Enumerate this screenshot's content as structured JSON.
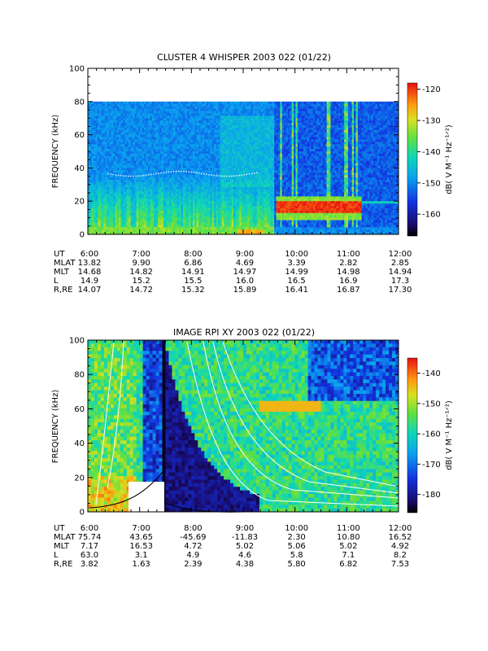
{
  "chart_data": [
    {
      "type": "heatmap",
      "title": "CLUSTER 4 WHISPER 2003 022 (01/22)",
      "ylabel": "FREQUENCY (kHz)",
      "ylim": [
        0,
        100
      ],
      "yticks": [
        "0",
        "20",
        "40",
        "60",
        "80",
        "100"
      ],
      "xlim": [
        "6:00",
        "12:00"
      ],
      "xticks": [
        "6:00",
        "7:00",
        "8:00",
        "9:00",
        "10:00",
        "11:00",
        "12:00"
      ],
      "data_top_khz": 80,
      "colorbar": {
        "label": "dB( V M⁻¹ Hz⁻¹ᐟ²)",
        "range": [
          -167,
          -118
        ],
        "ticks": [
          "-120",
          "-130",
          "-140",
          "-150",
          "-160"
        ]
      },
      "ephemeris": {
        "rows": [
          {
            "label": "UT",
            "values": [
              "6:00",
              "7:00",
              "8:00",
              "9:00",
              "10:00",
              "11:00",
              "12:00"
            ]
          },
          {
            "label": "MLAT",
            "values": [
              "13.82",
              "9.90",
              "6.86",
              "4.69",
              "3.39",
              "2.82",
              "2.85"
            ]
          },
          {
            "label": "MLT",
            "values": [
              "14.68",
              "14.82",
              "14.91",
              "14.97",
              "14.99",
              "14.98",
              "14.94"
            ]
          },
          {
            "label": "L",
            "values": [
              "14.9",
              "15.2",
              "15.5",
              "16.0",
              "16.5",
              "16.9",
              "17.3"
            ]
          },
          {
            "label": "R,RE",
            "values": [
              "14.07",
              "14.72",
              "15.32",
              "15.89",
              "16.41",
              "16.87",
              "17.30"
            ]
          }
        ]
      }
    },
    {
      "type": "heatmap",
      "title": "IMAGE RPI XY 2003 022 (01/22)",
      "ylabel": "FREQUENCY (kHz)",
      "ylim": [
        0,
        100
      ],
      "yticks": [
        "0",
        "20",
        "40",
        "60",
        "80",
        "100"
      ],
      "xlim": [
        "6:00",
        "12:00"
      ],
      "xticks": [
        "6:00",
        "7:00",
        "8:00",
        "9:00",
        "10:00",
        "11:00",
        "12:00"
      ],
      "colorbar": {
        "label": "dB( V M⁻¹ Hz⁻¹ᐟ²)",
        "range": [
          -186,
          -135
        ],
        "ticks": [
          "-140",
          "-150",
          "-160",
          "-170",
          "-180"
        ]
      },
      "ephemeris": {
        "rows": [
          {
            "label": "UT",
            "values": [
              "6:00",
              "7:00",
              "8:00",
              "9:00",
              "10:00",
              "11:00",
              "12:00"
            ]
          },
          {
            "label": "MLAT",
            "values": [
              "75.74",
              "43.65",
              "-45.69",
              "-11.83",
              "2.30",
              "10.80",
              "16.52"
            ]
          },
          {
            "label": "MLT",
            "values": [
              "7.17",
              "16.53",
              "4.72",
              "5.02",
              "5.06",
              "5.02",
              "4.92"
            ]
          },
          {
            "label": "L",
            "values": [
              "63.0",
              "3.1",
              "4.9",
              "4.6",
              "5.8",
              "7.1",
              "8.2"
            ]
          },
          {
            "label": "R,RE",
            "values": [
              "3.82",
              "1.63",
              "2.39",
              "4.38",
              "5.80",
              "6.82",
              "7.53"
            ]
          }
        ]
      }
    }
  ]
}
